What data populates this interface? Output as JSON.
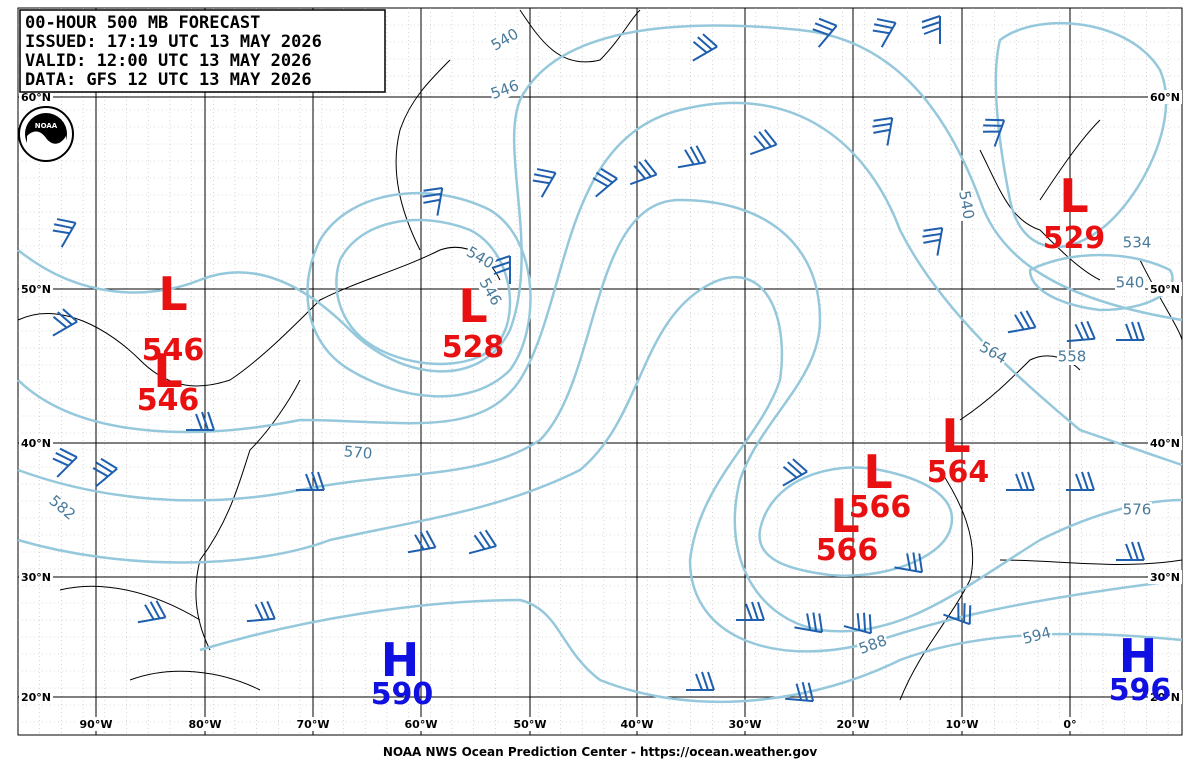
{
  "header": {
    "lines": [
      "00-HOUR 500 MB FORECAST",
      "ISSUED: 17:19 UTC 13 MAY 2026",
      "VALID:  12:00 UTC 13 MAY 2026",
      "DATA:  GFS 12 UTC 13 MAY 2026"
    ]
  },
  "logo": "NOAA",
  "pressure_centers": [
    {
      "letter": "L",
      "value": "546"
    },
    {
      "letter": "L",
      "value": "546"
    },
    {
      "letter": "L",
      "value": "528"
    },
    {
      "letter": "L",
      "value": "529"
    },
    {
      "letter": "L",
      "value": "564"
    },
    {
      "letter": "L",
      "value": "566"
    },
    {
      "letter": "L",
      "value": "566"
    },
    {
      "letter": "H",
      "value": "590"
    },
    {
      "letter": "H",
      "value": "596"
    }
  ],
  "contour_labels": [
    "540",
    "546",
    "540",
    "546",
    "570",
    "582",
    "564",
    "558",
    "540",
    "576",
    "588",
    "594",
    "534",
    "540"
  ],
  "latitude_labels": [
    "60°N",
    "50°N",
    "40°N",
    "30°N",
    "20°N"
  ],
  "longitude_labels": [
    "90°W",
    "80°W",
    "70°W",
    "60°W",
    "50°W",
    "40°W",
    "30°W",
    "20°W",
    "10°W",
    "0°"
  ],
  "footer": "NOAA NWS Ocean Prediction Center - https://ocean.weather.gov"
}
